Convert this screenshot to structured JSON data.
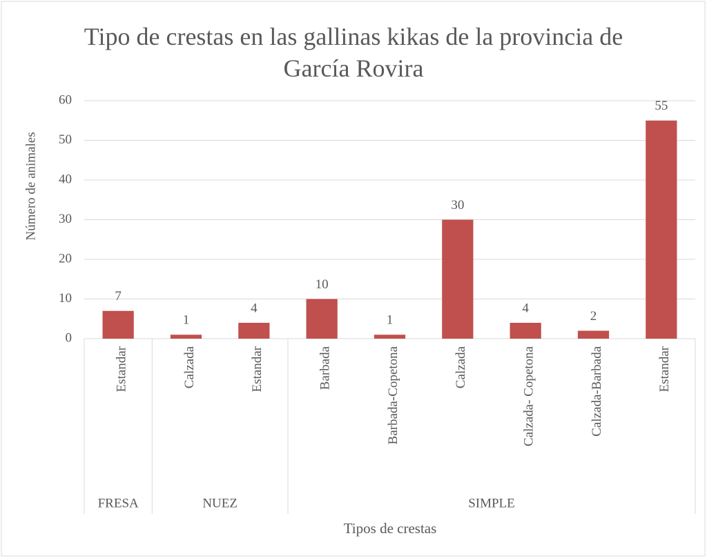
{
  "chart_data": {
    "type": "bar",
    "title": "Tipo de crestas en las gallinas kikas de la provincia de García Rovira",
    "ylabel": "Número de animales",
    "xlabel": "Tipos de crestas",
    "categories": [
      "Estandar",
      "Calzada",
      "Estandar",
      "Barbada",
      "Barbada-Copetona",
      "Calzada",
      "Calzada- Copetona",
      "Calzada-Barbada",
      "Estandar"
    ],
    "groups": [
      {
        "label": "FRESA",
        "size": 1
      },
      {
        "label": "NUEZ",
        "size": 2
      },
      {
        "label": "SIMPLE",
        "size": 6
      }
    ],
    "values": [
      7,
      1,
      4,
      10,
      1,
      30,
      4,
      2,
      55
    ],
    "color": "#c0504d",
    "ylim": [
      0,
      60
    ],
    "yticks": [
      0,
      10,
      20,
      30,
      40,
      50,
      60
    ],
    "grid": true
  }
}
